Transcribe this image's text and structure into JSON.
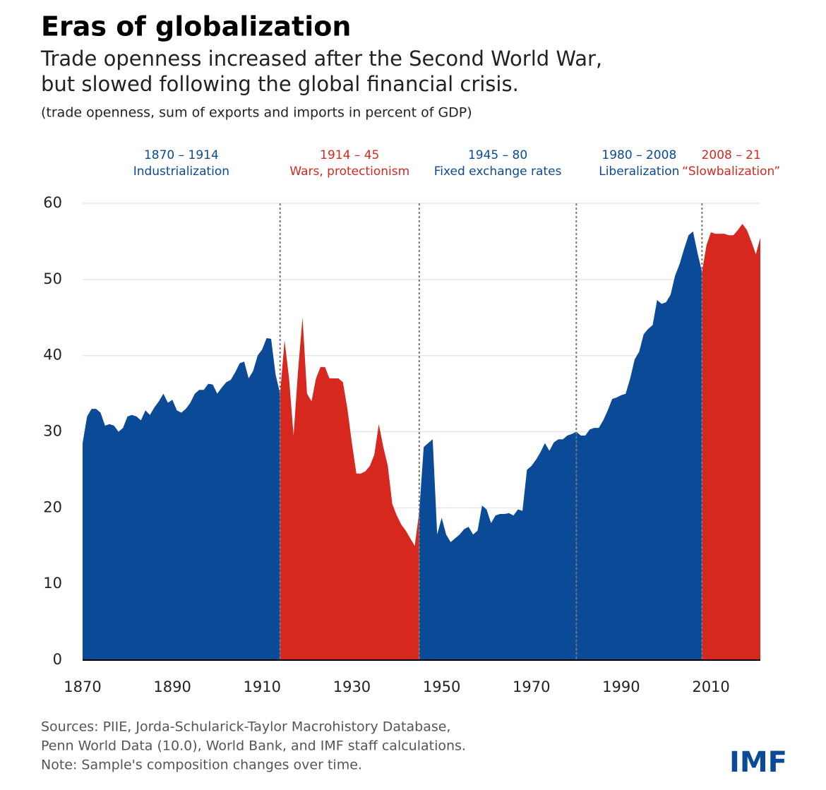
{
  "chart_data": {
    "type": "area",
    "title": "Eras of globalization",
    "subtitle": [
      "Trade openness increased after the Second World War,",
      "but slowed following the global financial crisis."
    ],
    "note_units": "(trade openness, sum of exports and imports in percent of GDP)",
    "x": [
      1870,
      1871,
      1872,
      1873,
      1874,
      1875,
      1876,
      1877,
      1878,
      1879,
      1880,
      1881,
      1882,
      1883,
      1884,
      1885,
      1886,
      1887,
      1888,
      1889,
      1890,
      1891,
      1892,
      1893,
      1894,
      1895,
      1896,
      1897,
      1898,
      1899,
      1900,
      1901,
      1902,
      1903,
      1904,
      1905,
      1906,
      1907,
      1908,
      1909,
      1910,
      1911,
      1912,
      1913,
      1914,
      1915,
      1916,
      1917,
      1918,
      1919,
      1920,
      1921,
      1922,
      1923,
      1924,
      1925,
      1926,
      1927,
      1928,
      1929,
      1930,
      1931,
      1932,
      1933,
      1934,
      1935,
      1936,
      1937,
      1938,
      1939,
      1940,
      1941,
      1942,
      1943,
      1944,
      1945,
      1946,
      1947,
      1948,
      1949,
      1950,
      1951,
      1952,
      1953,
      1954,
      1955,
      1956,
      1957,
      1958,
      1959,
      1960,
      1961,
      1962,
      1963,
      1964,
      1965,
      1966,
      1967,
      1968,
      1969,
      1970,
      1971,
      1972,
      1973,
      1974,
      1975,
      1976,
      1977,
      1978,
      1979,
      1980,
      1981,
      1982,
      1983,
      1984,
      1985,
      1986,
      1987,
      1988,
      1989,
      1990,
      1991,
      1992,
      1993,
      1994,
      1995,
      1996,
      1997,
      1998,
      1999,
      2000,
      2001,
      2002,
      2003,
      2004,
      2005,
      2006,
      2007,
      2008,
      2009,
      2010,
      2011,
      2012,
      2013,
      2014,
      2015,
      2016,
      2017,
      2018,
      2019,
      2020,
      2021
    ],
    "values": [
      28.5,
      32,
      33,
      33,
      32.5,
      30.8,
      31,
      30.8,
      30,
      30.5,
      32,
      32.2,
      32,
      31.5,
      32.8,
      32.2,
      33.2,
      34,
      35,
      33.8,
      34.2,
      32.8,
      32.5,
      33,
      33.8,
      35,
      35.5,
      35.5,
      36.3,
      36.2,
      35,
      35.8,
      36.5,
      36.8,
      37.8,
      39,
      39.2,
      37,
      38,
      40,
      40.8,
      42.3,
      42.2,
      37.5,
      35,
      42,
      37,
      29.5,
      38,
      45,
      35,
      34,
      37,
      38.5,
      38.5,
      37,
      37,
      37,
      36.5,
      33,
      28.5,
      24.5,
      24.5,
      24.8,
      25.5,
      27,
      31,
      28,
      25.5,
      20.5,
      19,
      17.8,
      17,
      16,
      15,
      19.5,
      28,
      28.5,
      29,
      16.5,
      18.7,
      16.5,
      15.5,
      16,
      16.5,
      17.2,
      17.5,
      16.5,
      17,
      20.3,
      19.8,
      18,
      19,
      19.2,
      19.2,
      19.3,
      19,
      19.8,
      19.6,
      25,
      25.5,
      26.3,
      27.3,
      28.5,
      27.5,
      28.6,
      29,
      29,
      29.5,
      29.7,
      30,
      29.5,
      29.5,
      30.3,
      30.5,
      30.5,
      31.5,
      32.8,
      34.3,
      34.5,
      34.8,
      35,
      37,
      39.5,
      40.5,
      42.8,
      43.5,
      44,
      47.3,
      46.8,
      47,
      48,
      50.5,
      52,
      54,
      55.8,
      56.3,
      53.5,
      51,
      54.5,
      56.2,
      56,
      56,
      56,
      55.8,
      55.8,
      56.5,
      57.3,
      56.5,
      55,
      53.3,
      55.5
    ],
    "eras": [
      {
        "period": "1870 – 1914",
        "name": "Industrialization",
        "start": 1870,
        "end": 1914,
        "color": "#0b4a96"
      },
      {
        "period": "1914 – 45",
        "name": "Wars, protectionism",
        "start": 1914,
        "end": 1945,
        "color": "#d7281f"
      },
      {
        "period": "1945 – 80",
        "name": "Fixed exchange rates",
        "start": 1945,
        "end": 1980,
        "color": "#0b4a96"
      },
      {
        "period": "1980 – 2008",
        "name": "Liberalization",
        "start": 1980,
        "end": 2008,
        "color": "#0b4a96"
      },
      {
        "period": "2008 – 21",
        "name": "“Slowbalization”",
        "start": 2008,
        "end": 2021,
        "color": "#d7281f"
      }
    ],
    "xlim": [
      1870,
      2021
    ],
    "xticks": [
      1870,
      1890,
      1910,
      1930,
      1950,
      1970,
      1990,
      2010
    ],
    "ylim": [
      0,
      60
    ],
    "yticks": [
      0,
      10,
      20,
      30,
      40,
      50,
      60
    ],
    "grid": true,
    "sources": [
      "Sources: PIIE, Jorda-Schularick-Taylor Macrohistory Database,",
      "Penn World Data (10.0), World Bank, and IMF staff calculations.",
      "Note: Sample's composition changes over time."
    ],
    "logo": "IMF"
  }
}
